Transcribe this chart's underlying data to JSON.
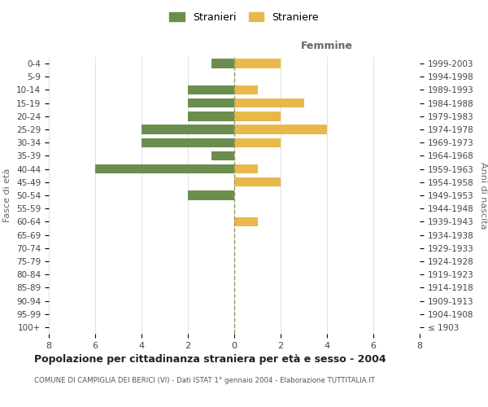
{
  "age_groups": [
    "100+",
    "95-99",
    "90-94",
    "85-89",
    "80-84",
    "75-79",
    "70-74",
    "65-69",
    "60-64",
    "55-59",
    "50-54",
    "45-49",
    "40-44",
    "35-39",
    "30-34",
    "25-29",
    "20-24",
    "15-19",
    "10-14",
    "5-9",
    "0-4"
  ],
  "birth_years": [
    "≤ 1903",
    "1904-1908",
    "1909-1913",
    "1914-1918",
    "1919-1923",
    "1924-1928",
    "1929-1933",
    "1934-1938",
    "1939-1943",
    "1944-1948",
    "1949-1953",
    "1954-1958",
    "1959-1963",
    "1964-1968",
    "1969-1973",
    "1974-1978",
    "1979-1983",
    "1984-1988",
    "1989-1993",
    "1994-1998",
    "1999-2003"
  ],
  "males": [
    0,
    0,
    0,
    0,
    0,
    0,
    0,
    0,
    0,
    0,
    2,
    0,
    6,
    1,
    4,
    4,
    2,
    2,
    2,
    0,
    1
  ],
  "females": [
    0,
    0,
    0,
    0,
    0,
    0,
    0,
    0,
    1,
    0,
    0,
    2,
    1,
    0,
    2,
    4,
    2,
    3,
    1,
    0,
    2
  ],
  "male_color": "#6B8E4E",
  "female_color": "#E8B84B",
  "male_label": "Stranieri",
  "female_label": "Straniere",
  "title": "Popolazione per cittadinanza straniera per età e sesso - 2004",
  "subtitle": "COMUNE DI CAMPIGLIA DEI BERICI (VI) - Dati ISTAT 1° gennaio 2004 - Elaborazione TUTTITALIA.IT",
  "xlabel_right": "Femmine",
  "ylabel_left": "Fasce di età",
  "ylabel_right": "Anni di nascita",
  "xlim": 8,
  "background_color": "#ffffff",
  "grid_color": "#dddddd"
}
